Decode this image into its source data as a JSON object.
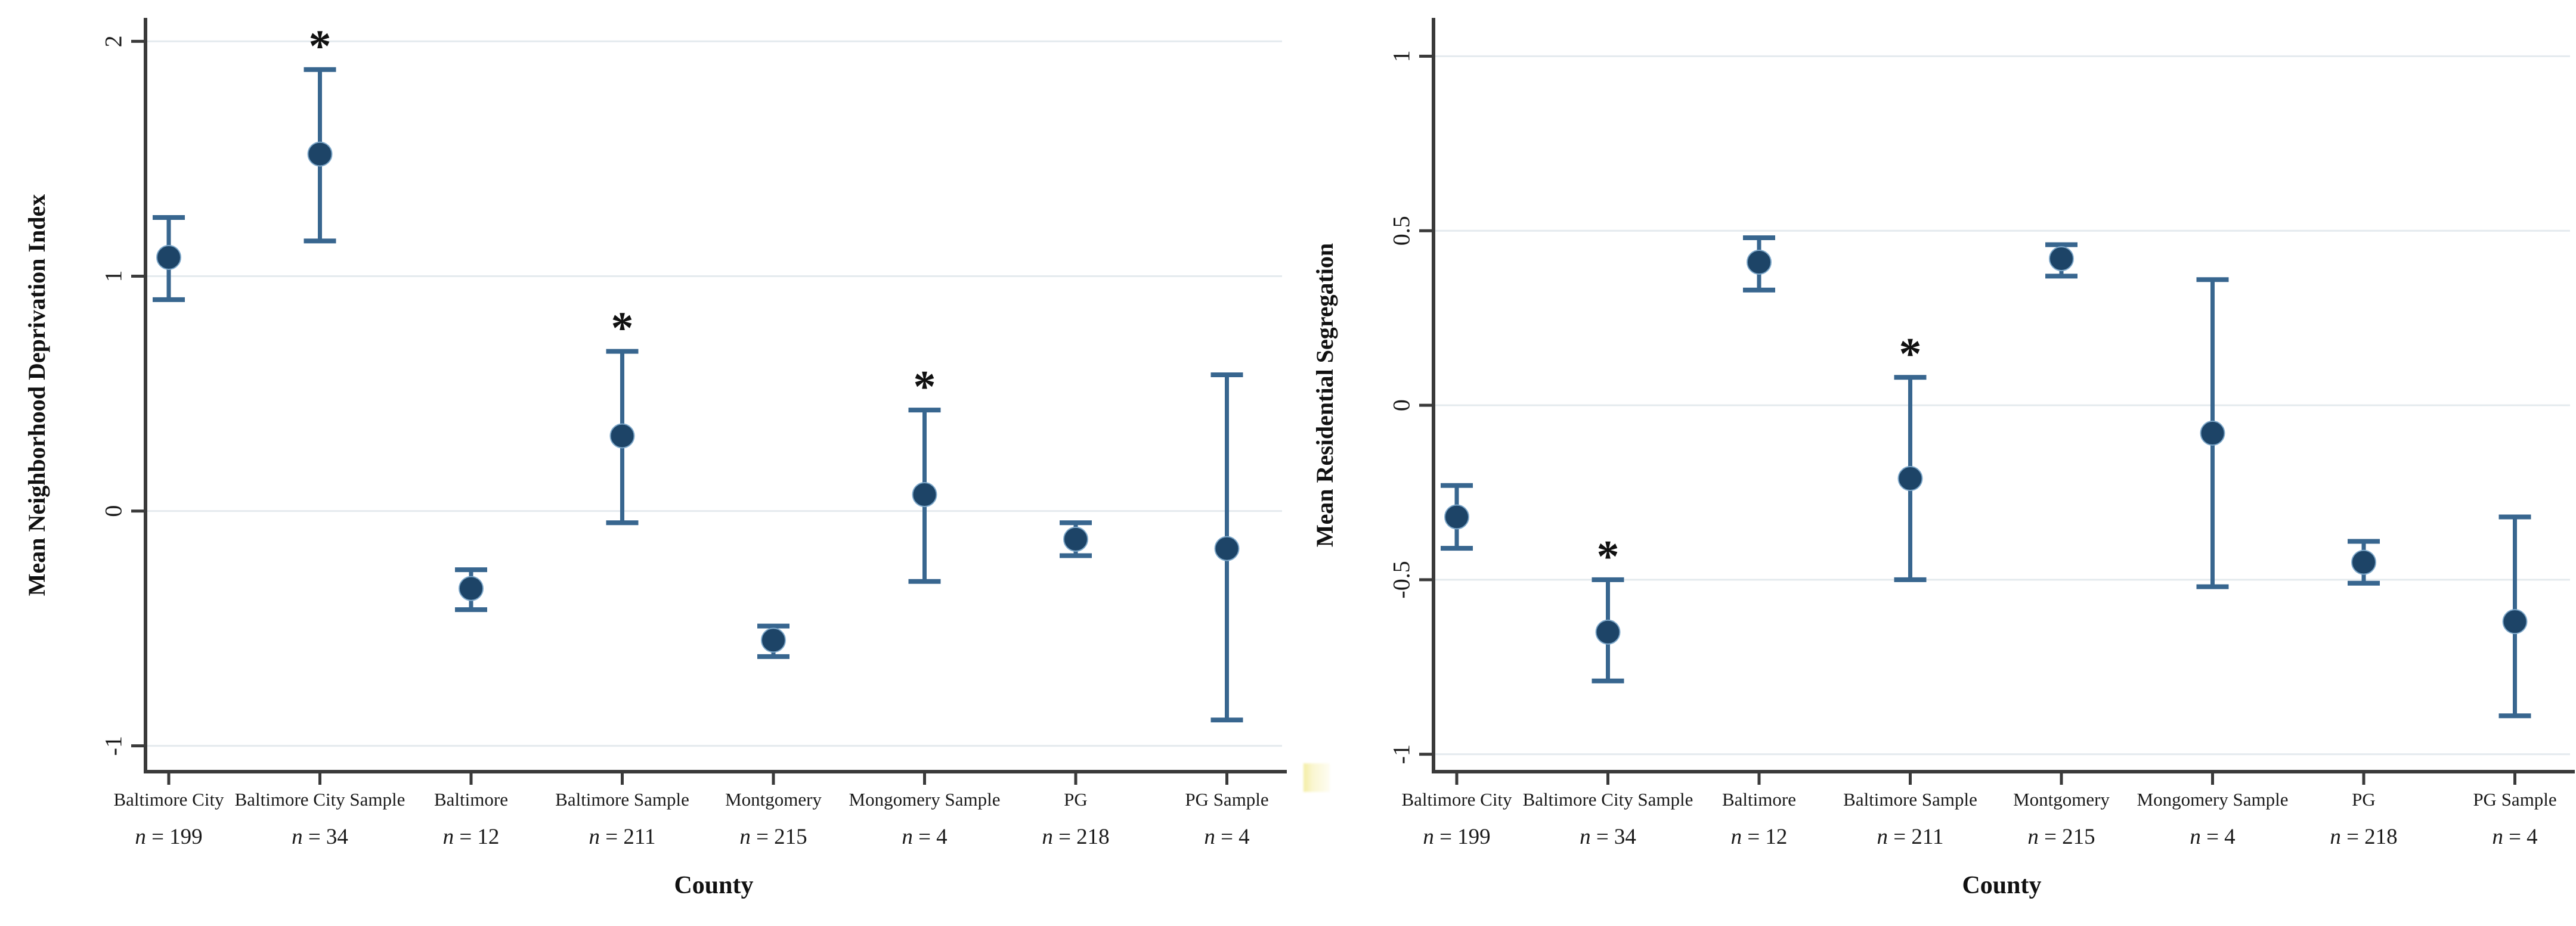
{
  "figure": {
    "sig_marker": "*",
    "n_prefix_italic": "n",
    "n_equals": " = ",
    "colors": {
      "background": "#ffffff",
      "marker": "#1d4467",
      "marker_ring": "#7da7c9",
      "error_bar": "#38668f",
      "grid": "#e4eaee",
      "axis": "#3a3a3a",
      "text": "#1a1a1a",
      "star": "#111111",
      "artifact_yellow": "#f3eda0"
    }
  },
  "chart_data": [
    {
      "type": "scatter",
      "subtype": "point-estimates-with-95ci-error-bars",
      "title": "",
      "ylabel": "Mean Neighborhood Deprivation Index",
      "xlabel": "County",
      "ylim": [
        -1.11,
        2.1
      ],
      "grid": true,
      "legend": "none",
      "yticks": [
        -1,
        0,
        1,
        2
      ],
      "ytick_labels": [
        "-1",
        "0",
        "1",
        "2"
      ],
      "categories": [
        "Baltimore City",
        "Baltimore City Sample",
        "Baltimore",
        "Baltimore Sample",
        "Montgomery",
        "Mongomery Sample",
        "PG",
        "PG Sample"
      ],
      "category_n": [
        "199",
        "34",
        "12",
        "211",
        "215",
        "4",
        "218",
        "4"
      ],
      "series": [
        {
          "name": "Mean Neighborhood Deprivation Index (95% CI)",
          "values": [
            1.08,
            1.52,
            -0.33,
            0.32,
            -0.55,
            0.07,
            -0.12,
            -0.16
          ],
          "ci_low": [
            0.9,
            1.15,
            -0.42,
            -0.05,
            -0.62,
            -0.3,
            -0.19,
            -0.89
          ],
          "ci_high": [
            1.25,
            1.88,
            -0.25,
            0.68,
            -0.49,
            0.43,
            -0.05,
            0.58
          ],
          "significant": [
            false,
            true,
            false,
            true,
            false,
            true,
            false,
            false
          ]
        }
      ]
    },
    {
      "type": "scatter",
      "subtype": "point-estimates-with-95ci-error-bars",
      "title": "",
      "ylabel": "Mean Residential Segregation",
      "xlabel": "County",
      "ylim": [
        -1.05,
        1.11
      ],
      "grid": true,
      "legend": "none",
      "yticks": [
        -1,
        -0.5,
        0,
        0.5,
        1
      ],
      "ytick_labels": [
        "-1",
        "-0.5",
        "0",
        "0.5",
        "1"
      ],
      "categories": [
        "Baltimore City",
        "Baltimore City Sample",
        "Baltimore",
        "Baltimore Sample",
        "Montgomery",
        "Mongomery Sample",
        "PG",
        "PG Sample"
      ],
      "category_n": [
        "199",
        "34",
        "12",
        "211",
        "215",
        "4",
        "218",
        "4"
      ],
      "series": [
        {
          "name": "Mean Residential Segregation (95% CI)",
          "values": [
            -0.32,
            -0.65,
            0.41,
            -0.21,
            0.42,
            -0.08,
            -0.45,
            -0.62
          ],
          "ci_low": [
            -0.41,
            -0.79,
            0.33,
            -0.5,
            0.37,
            -0.52,
            -0.51,
            -0.89
          ],
          "ci_high": [
            -0.23,
            -0.5,
            0.48,
            0.08,
            0.46,
            0.36,
            -0.39,
            -0.32
          ],
          "significant": [
            false,
            true,
            false,
            true,
            false,
            false,
            false,
            false
          ]
        }
      ]
    }
  ]
}
